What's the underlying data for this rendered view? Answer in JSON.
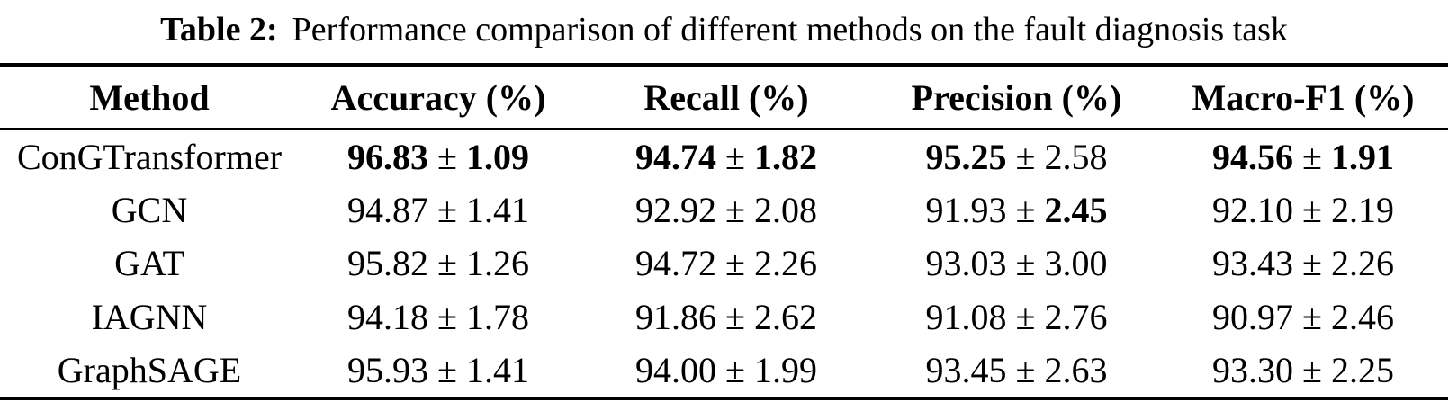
{
  "caption": {
    "label": "Table 2:",
    "text": "Performance comparison of different methods on the fault diagnosis task"
  },
  "table": {
    "pm": "±",
    "headers": [
      "Method",
      "Accuracy (%)",
      "Recall (%)",
      "Precision (%)",
      "Macro-F1 (%)"
    ],
    "rows": [
      {
        "method": "ConGTransformer",
        "accuracy": {
          "mean": "96.83",
          "std": "1.09",
          "bm": true,
          "bs": true
        },
        "recall": {
          "mean": "94.74",
          "std": "1.82",
          "bm": true,
          "bs": true
        },
        "precision": {
          "mean": "95.25",
          "std": "2.58",
          "bm": true
        },
        "macro_f1": {
          "mean": "94.56",
          "std": "1.91",
          "bm": true,
          "bs": true
        }
      },
      {
        "method": "GCN",
        "accuracy": {
          "mean": "94.87",
          "std": "1.41"
        },
        "recall": {
          "mean": "92.92",
          "std": "2.08"
        },
        "precision": {
          "mean": "91.93",
          "std": "2.45",
          "bs": true
        },
        "macro_f1": {
          "mean": "92.10",
          "std": "2.19"
        }
      },
      {
        "method": "GAT",
        "accuracy": {
          "mean": "95.82",
          "std": "1.26"
        },
        "recall": {
          "mean": "94.72",
          "std": "2.26"
        },
        "precision": {
          "mean": "93.03",
          "std": "3.00"
        },
        "macro_f1": {
          "mean": "93.43",
          "std": "2.26"
        }
      },
      {
        "method": "IAGNN",
        "accuracy": {
          "mean": "94.18",
          "std": "1.78"
        },
        "recall": {
          "mean": "91.86",
          "std": "2.62"
        },
        "precision": {
          "mean": "91.08",
          "std": "2.76"
        },
        "macro_f1": {
          "mean": "90.97",
          "std": "2.46"
        }
      },
      {
        "method": "GraphSAGE",
        "accuracy": {
          "mean": "95.93",
          "std": "1.41"
        },
        "recall": {
          "mean": "94.00",
          "std": "1.99"
        },
        "precision": {
          "mean": "93.45",
          "std": "2.63"
        },
        "macro_f1": {
          "mean": "93.30",
          "std": "2.25"
        }
      }
    ]
  }
}
